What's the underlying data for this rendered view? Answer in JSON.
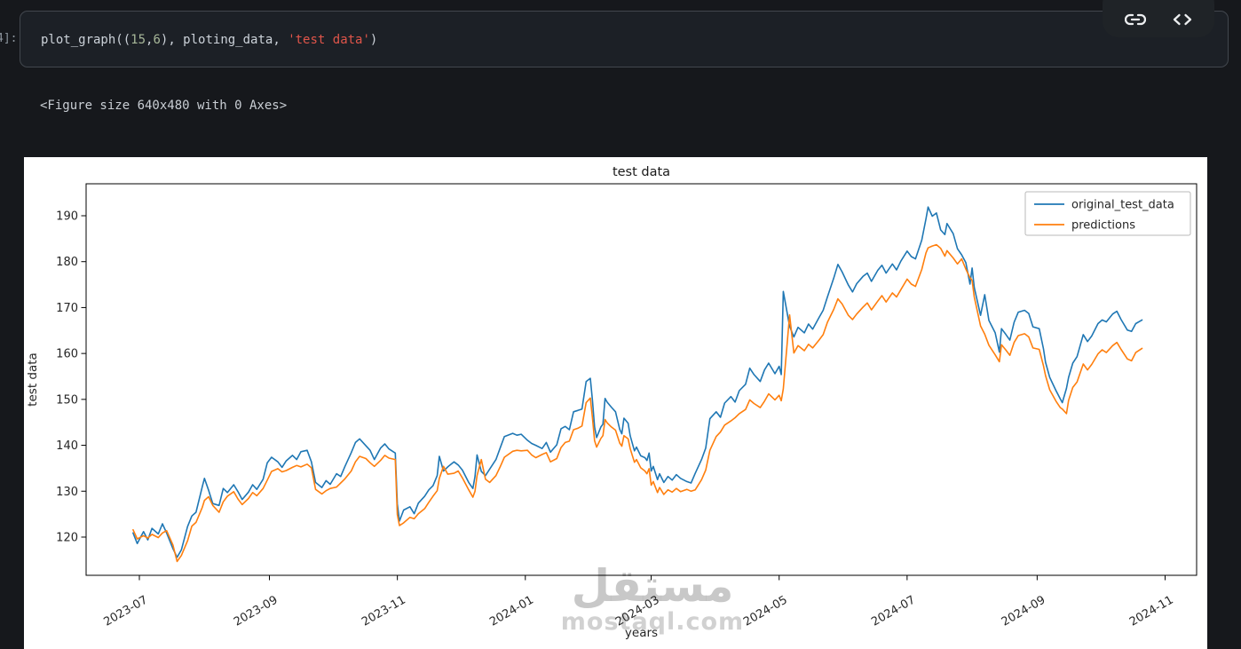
{
  "cell": {
    "prompt": "4]:",
    "code_tokens": [
      {
        "text": "plot_graph((",
        "type": "default"
      },
      {
        "text": "15",
        "type": "num"
      },
      {
        "text": ",",
        "type": "default"
      },
      {
        "text": "6",
        "type": "num"
      },
      {
        "text": "), ploting_data, ",
        "type": "default"
      },
      {
        "text": "'test data'",
        "type": "str"
      },
      {
        "text": ")",
        "type": "default"
      }
    ],
    "output_text": "<Figure size 640x480 with 0 Axes>"
  },
  "toolbar": {
    "link_icon": "link-icon",
    "code_icon": "code-icon"
  },
  "watermark": {
    "arabic": "مستقل",
    "latin": "mostaql.com"
  },
  "colors": {
    "page_bg": "#16181c",
    "cell_bg": "#1c2026",
    "cell_border": "#42474e",
    "string_token": "#e0554a",
    "series_blue": "#1f77b4",
    "series_orange": "#ff7f0e"
  },
  "chart_data": {
    "type": "line",
    "title": "test data",
    "xlabel": "years",
    "ylabel": "test data",
    "grid": false,
    "legend_position": "upper right",
    "ylim": [
      111.7,
      197.0
    ],
    "yticks": [
      120,
      130,
      140,
      150,
      160,
      170,
      180,
      190
    ],
    "xticks": [
      "2023-07",
      "2023-09",
      "2023-11",
      "2024-01",
      "2024-03",
      "2024-05",
      "2024-07",
      "2024-09",
      "2024-11"
    ],
    "xtick_dates": [
      "2023-07-01",
      "2023-09-01",
      "2023-11-01",
      "2024-01-01",
      "2024-03-01",
      "2024-05-01",
      "2024-07-01",
      "2024-09-01",
      "2024-11-01"
    ],
    "x": [
      "2023-06-28",
      "2023-06-30",
      "2023-07-03",
      "2023-07-05",
      "2023-07-07",
      "2023-07-10",
      "2023-07-12",
      "2023-07-14",
      "2023-07-17",
      "2023-07-19",
      "2023-07-21",
      "2023-07-24",
      "2023-07-26",
      "2023-07-28",
      "2023-07-31",
      "2023-08-01",
      "2023-08-03",
      "2023-08-05",
      "2023-08-08",
      "2023-08-10",
      "2023-08-12",
      "2023-08-15",
      "2023-08-17",
      "2023-08-19",
      "2023-08-22",
      "2023-08-24",
      "2023-08-26",
      "2023-08-29",
      "2023-08-31",
      "2023-09-02",
      "2023-09-05",
      "2023-09-07",
      "2023-09-09",
      "2023-09-12",
      "2023-09-14",
      "2023-09-16",
      "2023-09-19",
      "2023-09-21",
      "2023-09-23",
      "2023-09-26",
      "2023-09-28",
      "2023-09-30",
      "2023-10-03",
      "2023-10-05",
      "2023-10-07",
      "2023-10-10",
      "2023-10-12",
      "2023-10-14",
      "2023-10-17",
      "2023-10-19",
      "2023-10-21",
      "2023-10-24",
      "2023-10-26",
      "2023-10-28",
      "2023-10-31",
      "2023-11-01",
      "2023-11-02",
      "2023-11-04",
      "2023-11-07",
      "2023-11-09",
      "2023-11-11",
      "2023-11-14",
      "2023-11-16",
      "2023-11-18",
      "2023-11-20",
      "2023-11-21",
      "2023-11-23",
      "2023-11-25",
      "2023-11-28",
      "2023-11-30",
      "2023-12-02",
      "2023-12-05",
      "2023-12-07",
      "2023-12-08",
      "2023-12-09",
      "2023-12-11",
      "2023-12-13",
      "2023-12-15",
      "2023-12-18",
      "2023-12-20",
      "2023-12-22",
      "2023-12-26",
      "2023-12-28",
      "2023-12-30",
      "2024-01-02",
      "2024-01-04",
      "2024-01-06",
      "2024-01-09",
      "2024-01-11",
      "2024-01-13",
      "2024-01-16",
      "2024-01-18",
      "2024-01-20",
      "2024-01-22",
      "2024-01-24",
      "2024-01-26",
      "2024-01-28",
      "2024-01-30",
      "2024-02-01",
      "2024-02-02",
      "2024-02-03",
      "2024-02-04",
      "2024-02-06",
      "2024-02-07",
      "2024-02-08",
      "2024-02-09",
      "2024-02-11",
      "2024-02-13",
      "2024-02-15",
      "2024-02-16",
      "2024-02-17",
      "2024-02-19",
      "2024-02-20",
      "2024-02-22",
      "2024-02-23",
      "2024-02-25",
      "2024-02-27",
      "2024-02-28",
      "2024-02-29",
      "2024-03-01",
      "2024-03-02",
      "2024-03-04",
      "2024-03-05",
      "2024-03-07",
      "2024-03-09",
      "2024-03-11",
      "2024-03-13",
      "2024-03-15",
      "2024-03-18",
      "2024-03-20",
      "2024-03-22",
      "2024-03-25",
      "2024-03-27",
      "2024-03-29",
      "2024-04-01",
      "2024-04-03",
      "2024-04-05",
      "2024-04-08",
      "2024-04-10",
      "2024-04-12",
      "2024-04-15",
      "2024-04-17",
      "2024-04-19",
      "2024-04-22",
      "2024-04-24",
      "2024-04-26",
      "2024-04-29",
      "2024-05-01",
      "2024-05-02",
      "2024-05-03",
      "2024-05-06",
      "2024-05-08",
      "2024-05-10",
      "2024-05-13",
      "2024-05-15",
      "2024-05-17",
      "2024-05-20",
      "2024-05-22",
      "2024-05-24",
      "2024-05-27",
      "2024-05-29",
      "2024-05-31",
      "2024-06-03",
      "2024-06-05",
      "2024-06-07",
      "2024-06-10",
      "2024-06-12",
      "2024-06-14",
      "2024-06-17",
      "2024-06-19",
      "2024-06-21",
      "2024-06-24",
      "2024-06-26",
      "2024-06-28",
      "2024-07-01",
      "2024-07-03",
      "2024-07-05",
      "2024-07-08",
      "2024-07-10",
      "2024-07-11",
      "2024-07-13",
      "2024-07-15",
      "2024-07-17",
      "2024-07-19",
      "2024-07-20",
      "2024-07-23",
      "2024-07-25",
      "2024-07-27",
      "2024-07-29",
      "2024-07-31",
      "2024-08-01",
      "2024-08-02",
      "2024-08-05",
      "2024-08-07",
      "2024-08-09",
      "2024-08-12",
      "2024-08-14",
      "2024-08-15",
      "2024-08-17",
      "2024-08-19",
      "2024-08-21",
      "2024-08-23",
      "2024-08-26",
      "2024-08-28",
      "2024-08-30",
      "2024-09-02",
      "2024-09-04",
      "2024-09-05",
      "2024-09-07",
      "2024-09-10",
      "2024-09-12",
      "2024-09-13",
      "2024-09-15",
      "2024-09-16",
      "2024-09-18",
      "2024-09-20",
      "2024-09-23",
      "2024-09-25",
      "2024-09-27",
      "2024-09-30",
      "2024-10-02",
      "2024-10-04",
      "2024-10-07",
      "2024-10-09",
      "2024-10-11",
      "2024-10-14",
      "2024-10-16",
      "2024-10-18",
      "2024-10-21"
    ],
    "series": [
      {
        "name": "original_test_data",
        "color": "#1f77b4",
        "values": [
          120.9,
          118.6,
          121.2,
          119.4,
          121.9,
          120.7,
          122.9,
          120.9,
          117.5,
          115.6,
          117.2,
          122.3,
          124.6,
          125.4,
          131.0,
          132.8,
          130.2,
          127.3,
          126.9,
          130.6,
          129.7,
          131.4,
          129.9,
          128.2,
          129.8,
          131.4,
          130.4,
          132.6,
          136.2,
          137.4,
          136.4,
          135.2,
          136.6,
          137.8,
          136.9,
          138.6,
          138.9,
          136.4,
          131.9,
          130.8,
          132.3,
          131.5,
          133.8,
          133.2,
          135.4,
          138.4,
          140.6,
          141.4,
          139.9,
          138.9,
          136.9,
          139.4,
          140.3,
          139.2,
          138.3,
          127.2,
          123.5,
          125.9,
          126.6,
          125.1,
          127.4,
          128.9,
          130.3,
          131.2,
          133.4,
          137.6,
          134.4,
          135.3,
          136.4,
          135.7,
          134.6,
          131.9,
          130.6,
          133.2,
          137.9,
          134.3,
          133.4,
          134.8,
          136.9,
          139.4,
          141.9,
          142.6,
          142.2,
          142.4,
          141.1,
          140.4,
          140.0,
          139.3,
          140.6,
          138.5,
          140.1,
          143.6,
          144.1,
          143.4,
          147.3,
          147.6,
          147.9,
          153.9,
          154.6,
          149.8,
          144.0,
          141.7,
          144.0,
          144.6,
          150.2,
          149.4,
          148.3,
          147.3,
          143.5,
          142.5,
          145.9,
          144.8,
          142.1,
          138.8,
          139.6,
          137.7,
          137.3,
          136.7,
          138.3,
          134.4,
          135.4,
          132.5,
          133.8,
          131.9,
          133.2,
          132.4,
          133.6,
          132.8,
          132.1,
          131.8,
          133.9,
          136.9,
          139.4,
          145.8,
          147.3,
          146.1,
          149.2,
          150.6,
          149.4,
          151.9,
          153.3,
          156.8,
          155.4,
          153.9,
          156.4,
          157.9,
          155.6,
          157.2,
          155.4,
          173.5,
          165.9,
          163.6,
          165.7,
          164.5,
          166.4,
          165.3,
          167.8,
          169.4,
          172.3,
          176.4,
          179.4,
          177.8,
          174.9,
          173.4,
          175.2,
          176.8,
          177.5,
          175.7,
          178.1,
          179.2,
          177.5,
          179.5,
          178.2,
          180.1,
          182.3,
          181.1,
          180.6,
          184.7,
          189.3,
          191.9,
          189.9,
          190.6,
          186.9,
          185.9,
          188.3,
          186.1,
          182.8,
          181.5,
          179.8,
          175.1,
          178.6,
          174.4,
          168.3,
          172.8,
          167.2,
          164.5,
          160.3,
          165.4,
          164.2,
          162.9,
          166.8,
          169.0,
          169.4,
          168.7,
          165.8,
          165.4,
          161.0,
          158.1,
          154.8,
          151.9,
          150.1,
          149.3,
          152.4,
          154.8,
          157.9,
          159.3,
          164.1,
          162.6,
          163.8,
          166.5,
          167.3,
          166.9,
          168.6,
          169.2,
          167.4,
          165.1,
          164.8,
          166.5,
          167.3
        ]
      },
      {
        "name": "predictions",
        "color": "#ff7f0e",
        "values": [
          121.6,
          119.6,
          120.3,
          119.8,
          120.6,
          119.9,
          120.9,
          121.4,
          118.3,
          114.7,
          116.0,
          119.2,
          122.4,
          123.2,
          126.5,
          128.0,
          128.8,
          126.9,
          125.4,
          127.7,
          128.9,
          129.9,
          128.3,
          127.1,
          128.4,
          129.7,
          129.0,
          130.6,
          132.4,
          134.3,
          134.9,
          134.2,
          134.5,
          135.2,
          135.6,
          135.3,
          135.9,
          135.1,
          130.4,
          129.4,
          130.1,
          130.6,
          130.9,
          131.8,
          132.7,
          134.4,
          136.4,
          137.6,
          137.1,
          136.2,
          135.4,
          136.7,
          137.8,
          137.2,
          136.9,
          124.9,
          122.5,
          123.1,
          124.3,
          124.0,
          125.1,
          126.2,
          127.6,
          128.9,
          130.1,
          132.8,
          135.4,
          133.7,
          133.9,
          134.4,
          132.9,
          130.3,
          128.7,
          130.0,
          133.4,
          136.9,
          132.6,
          131.9,
          133.4,
          135.3,
          137.4,
          138.7,
          138.9,
          138.8,
          138.9,
          137.9,
          137.3,
          138.0,
          138.4,
          136.4,
          137.1,
          139.5,
          140.6,
          140.9,
          143.4,
          143.7,
          144.2,
          149.3,
          150.3,
          146.0,
          141.0,
          139.6,
          141.5,
          142.1,
          145.6,
          144.9,
          144.0,
          143.3,
          140.5,
          139.8,
          142.1,
          141.4,
          139.3,
          136.3,
          136.9,
          135.1,
          134.4,
          133.8,
          134.9,
          131.3,
          132.1,
          129.7,
          130.8,
          129.3,
          130.3,
          129.8,
          130.6,
          129.9,
          130.4,
          130.0,
          130.3,
          132.5,
          134.6,
          138.9,
          141.9,
          142.9,
          144.4,
          145.3,
          146.0,
          146.9,
          147.8,
          149.9,
          149.1,
          148.2,
          149.6,
          151.2,
          149.9,
          150.9,
          149.7,
          152.3,
          168.4,
          160.1,
          161.7,
          160.6,
          162.0,
          161.2,
          162.9,
          164.1,
          166.8,
          169.6,
          171.9,
          170.8,
          168.3,
          167.4,
          168.6,
          170.1,
          171.0,
          169.5,
          171.4,
          172.6,
          171.2,
          173.2,
          172.3,
          173.9,
          176.2,
          175.1,
          174.6,
          178.3,
          181.9,
          183.0,
          183.4,
          183.7,
          182.9,
          181.2,
          182.4,
          180.8,
          179.5,
          180.6,
          178.4,
          176.5,
          175.9,
          172.3,
          166.0,
          164.2,
          161.8,
          159.7,
          158.2,
          161.9,
          160.8,
          159.6,
          162.4,
          163.9,
          164.3,
          163.6,
          161.2,
          160.9,
          157.3,
          155.2,
          152.1,
          149.6,
          148.2,
          147.9,
          146.9,
          149.8,
          152.6,
          153.8,
          157.7,
          156.4,
          157.6,
          159.9,
          160.8,
          160.2,
          161.7,
          162.4,
          160.9,
          158.8,
          158.4,
          160.2,
          161.1
        ]
      }
    ]
  }
}
